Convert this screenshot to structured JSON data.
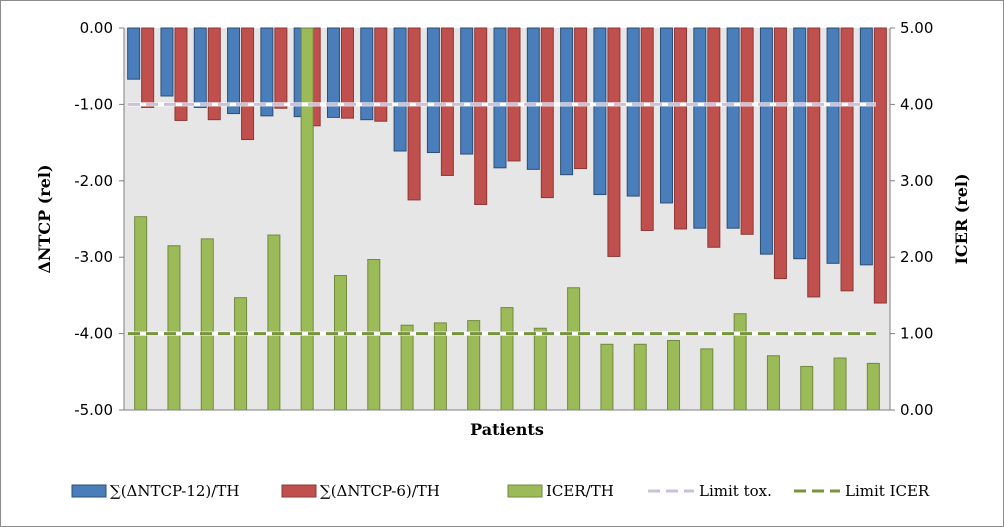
{
  "chart_data": {
    "type": "bar",
    "xlabel": "Patients",
    "ylabel_left": "ΔNTCP (rel)",
    "ylabel_right": "ICER (rel)",
    "ylim_left": [
      -5,
      0
    ],
    "ylim_right": [
      0,
      5
    ],
    "left_ticks": [
      "0.00",
      "-1.00",
      "-2.00",
      "-3.00",
      "-4.00",
      "-5.00"
    ],
    "right_ticks": [
      "5.00",
      "4.00",
      "3.00",
      "2.00",
      "1.00",
      "0.00"
    ],
    "grid": false,
    "legend_position": "bottom",
    "series": [
      {
        "name": "∑(ΔNTCP-12)/TH",
        "axis": "left",
        "color": "#4a7ebb",
        "values": [
          -0.67,
          -0.89,
          -1.04,
          -1.12,
          -1.15,
          -1.16,
          -1.17,
          -1.2,
          -1.61,
          -1.63,
          -1.65,
          -1.83,
          -1.85,
          -1.92,
          -2.18,
          -2.2,
          -2.29,
          -2.62,
          -2.62,
          -2.96,
          -3.02,
          -3.08,
          -3.1
        ]
      },
      {
        "name": "∑(ΔNTCP-6)/TH",
        "axis": "left",
        "color": "#c0504d",
        "values": [
          -1.04,
          -1.21,
          -1.2,
          -1.46,
          -1.05,
          -1.28,
          -1.18,
          -1.22,
          -2.25,
          -1.93,
          -2.31,
          -1.74,
          -2.22,
          -1.84,
          -2.99,
          -2.65,
          -2.63,
          -2.87,
          -2.7,
          -3.28,
          -3.52,
          -3.44,
          -3.6
        ]
      },
      {
        "name": "ICER/TH",
        "axis": "right",
        "color": "#9bbb59",
        "values": [
          2.53,
          2.15,
          2.24,
          1.47,
          2.29,
          5.0,
          1.76,
          1.97,
          1.11,
          1.14,
          1.17,
          1.34,
          1.07,
          1.6,
          0.86,
          0.86,
          0.91,
          0.8,
          1.26,
          0.71,
          0.57,
          0.68,
          0.61
        ]
      },
      {
        "name": "Limit tox.",
        "type": "line",
        "axis": "left",
        "value": -1.0,
        "color": "#ccc1da"
      },
      {
        "name": "Limit ICER",
        "type": "line",
        "axis": "right",
        "value": 1.0,
        "color": "#77933c"
      }
    ]
  }
}
